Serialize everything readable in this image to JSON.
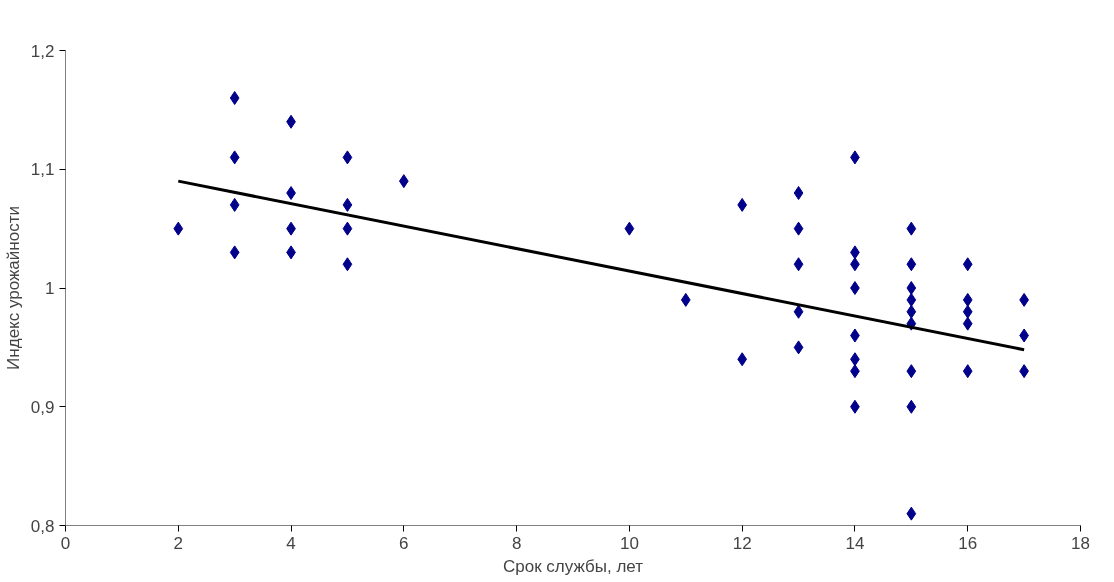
{
  "chart_data": {
    "type": "scatter",
    "xlabel": "Срок службы, лет",
    "ylabel": "Индекс урожайности",
    "xlim": [
      0,
      18
    ],
    "xticks": [
      0,
      2,
      4,
      6,
      8,
      10,
      12,
      14,
      16,
      18
    ],
    "ylim": [
      0.8,
      1.2
    ],
    "yticks": [
      {
        "value": 0.8,
        "label": "0,8"
      },
      {
        "value": 0.9,
        "label": "0,9"
      },
      {
        "value": 1,
        "label": "1"
      },
      {
        "value": 1.1,
        "label": "1,1"
      },
      {
        "value": 1.2,
        "label": "1,2"
      }
    ],
    "grid": false,
    "marker": "diamond",
    "series": [
      {
        "color": "#00008b",
        "x": [
          2,
          3,
          3,
          3,
          3,
          4,
          4,
          4,
          4,
          5,
          5,
          5,
          5,
          6,
          10,
          11,
          12,
          12,
          13,
          13,
          13,
          13,
          13,
          14,
          14,
          14,
          14,
          14,
          14,
          14,
          14,
          15,
          15,
          15,
          15,
          15,
          15,
          15,
          15,
          15,
          16,
          16,
          16,
          16,
          16,
          17,
          17,
          17
        ],
        "values": [
          1.05,
          1.16,
          1.11,
          1.07,
          1.03,
          1.14,
          1.08,
          1.05,
          1.03,
          1.11,
          1.07,
          1.05,
          1.02,
          1.09,
          1.05,
          0.99,
          1.07,
          0.94,
          1.08,
          1.05,
          1.02,
          0.98,
          0.95,
          1.11,
          1.03,
          1.02,
          1.0,
          0.96,
          0.94,
          0.93,
          0.9,
          1.05,
          1.02,
          1.0,
          0.99,
          0.98,
          0.97,
          0.93,
          0.9,
          0.81,
          1.02,
          0.99,
          0.98,
          0.97,
          0.93,
          0.99,
          0.96,
          0.93
        ]
      },
      {
        "type": "line",
        "color": "#000000",
        "line_style": "solid",
        "marker": "none",
        "x": [
          2,
          17
        ],
        "values": [
          1.09,
          0.948
        ]
      }
    ]
  }
}
